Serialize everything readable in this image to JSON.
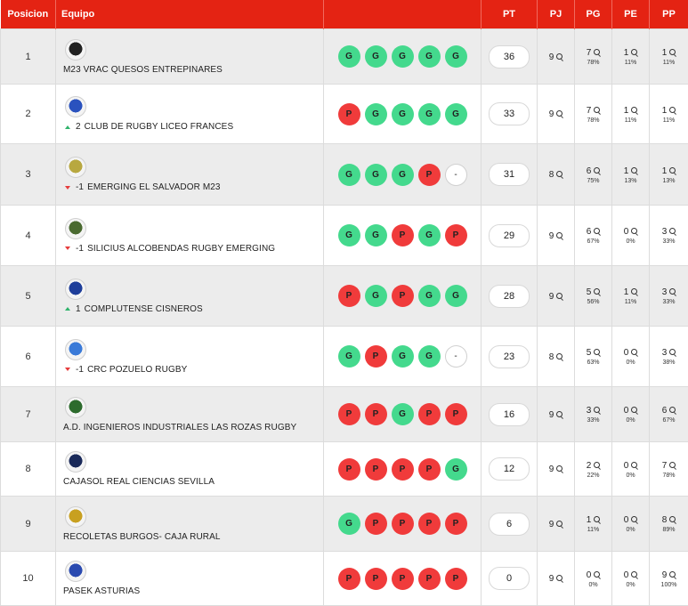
{
  "headers": {
    "pos": "Posicion",
    "team": "Equipo",
    "form": "",
    "pt": "PT",
    "pj": "PJ",
    "pg": "PG",
    "pe": "PE",
    "pp": "PP"
  },
  "colors": {
    "header_bg": "#e42313",
    "win": "#44d98d",
    "loss": "#f03b3b",
    "trend_up": "#2fb36b",
    "trend_down": "#e63b3b"
  },
  "rows": [
    {
      "pos": "1",
      "team": "M23 VRAC QUESOS ENTREPINARES",
      "trend": "",
      "trend_val": "",
      "logo_color": "#222222",
      "form": [
        "G",
        "G",
        "G",
        "G",
        "G"
      ],
      "pt": "36",
      "pj": "9",
      "pg": "7",
      "pg_pct": "78%",
      "pe": "1",
      "pe_pct": "11%",
      "pp": "1",
      "pp_pct": "11%"
    },
    {
      "pos": "2",
      "team": "CLUB DE RUGBY LICEO FRANCES",
      "trend": "up",
      "trend_val": "2",
      "logo_color": "#2a52be",
      "form": [
        "P",
        "G",
        "G",
        "G",
        "G"
      ],
      "pt": "33",
      "pj": "9",
      "pg": "7",
      "pg_pct": "78%",
      "pe": "1",
      "pe_pct": "11%",
      "pp": "1",
      "pp_pct": "11%"
    },
    {
      "pos": "3",
      "team": "EMERGING EL SALVADOR M23",
      "trend": "down",
      "trend_val": "-1",
      "logo_color": "#b8a840",
      "form": [
        "G",
        "G",
        "G",
        "P",
        "-"
      ],
      "pt": "31",
      "pj": "8",
      "pg": "6",
      "pg_pct": "75%",
      "pe": "1",
      "pe_pct": "13%",
      "pp": "1",
      "pp_pct": "13%"
    },
    {
      "pos": "4",
      "team": "SILICIUS ALCOBENDAS RUGBY EMERGING",
      "trend": "down",
      "trend_val": "-1",
      "logo_color": "#4a6a30",
      "form": [
        "G",
        "G",
        "P",
        "G",
        "P"
      ],
      "pt": "29",
      "pj": "9",
      "pg": "6",
      "pg_pct": "67%",
      "pe": "0",
      "pe_pct": "0%",
      "pp": "3",
      "pp_pct": "33%"
    },
    {
      "pos": "5",
      "team": "COMPLUTENSE CISNEROS",
      "trend": "up",
      "trend_val": "1",
      "logo_color": "#1e3e9a",
      "form": [
        "P",
        "G",
        "P",
        "G",
        "G"
      ],
      "pt": "28",
      "pj": "9",
      "pg": "5",
      "pg_pct": "56%",
      "pe": "1",
      "pe_pct": "11%",
      "pp": "3",
      "pp_pct": "33%"
    },
    {
      "pos": "6",
      "team": "CRC POZUELO RUGBY",
      "trend": "down",
      "trend_val": "-1",
      "logo_color": "#3a7ad8",
      "form": [
        "G",
        "P",
        "G",
        "G",
        "-"
      ],
      "pt": "23",
      "pj": "8",
      "pg": "5",
      "pg_pct": "63%",
      "pe": "0",
      "pe_pct": "0%",
      "pp": "3",
      "pp_pct": "38%"
    },
    {
      "pos": "7",
      "team": "A.D. INGENIEROS INDUSTRIALES LAS ROZAS RUGBY",
      "trend": "",
      "trend_val": "",
      "logo_color": "#2d6b2d",
      "form": [
        "P",
        "P",
        "G",
        "P",
        "P"
      ],
      "pt": "16",
      "pj": "9",
      "pg": "3",
      "pg_pct": "33%",
      "pe": "0",
      "pe_pct": "0%",
      "pp": "6",
      "pp_pct": "67%"
    },
    {
      "pos": "8",
      "team": "CAJASOL REAL CIENCIAS SEVILLA",
      "trend": "",
      "trend_val": "",
      "logo_color": "#1a2a5a",
      "form": [
        "P",
        "P",
        "P",
        "P",
        "G"
      ],
      "pt": "12",
      "pj": "9",
      "pg": "2",
      "pg_pct": "22%",
      "pe": "0",
      "pe_pct": "0%",
      "pp": "7",
      "pp_pct": "78%"
    },
    {
      "pos": "9",
      "team": "RECOLETAS BURGOS- CAJA RURAL",
      "trend": "",
      "trend_val": "",
      "logo_color": "#c8a020",
      "form": [
        "G",
        "P",
        "P",
        "P",
        "P"
      ],
      "pt": "6",
      "pj": "9",
      "pg": "1",
      "pg_pct": "11%",
      "pe": "0",
      "pe_pct": "0%",
      "pp": "8",
      "pp_pct": "89%"
    },
    {
      "pos": "10",
      "team": "PASEK ASTURIAS",
      "trend": "",
      "trend_val": "",
      "logo_color": "#2a4ab0",
      "form": [
        "P",
        "P",
        "P",
        "P",
        "P"
      ],
      "pt": "0",
      "pj": "9",
      "pg": "0",
      "pg_pct": "0%",
      "pe": "0",
      "pe_pct": "0%",
      "pp": "9",
      "pp_pct": "100%"
    }
  ]
}
